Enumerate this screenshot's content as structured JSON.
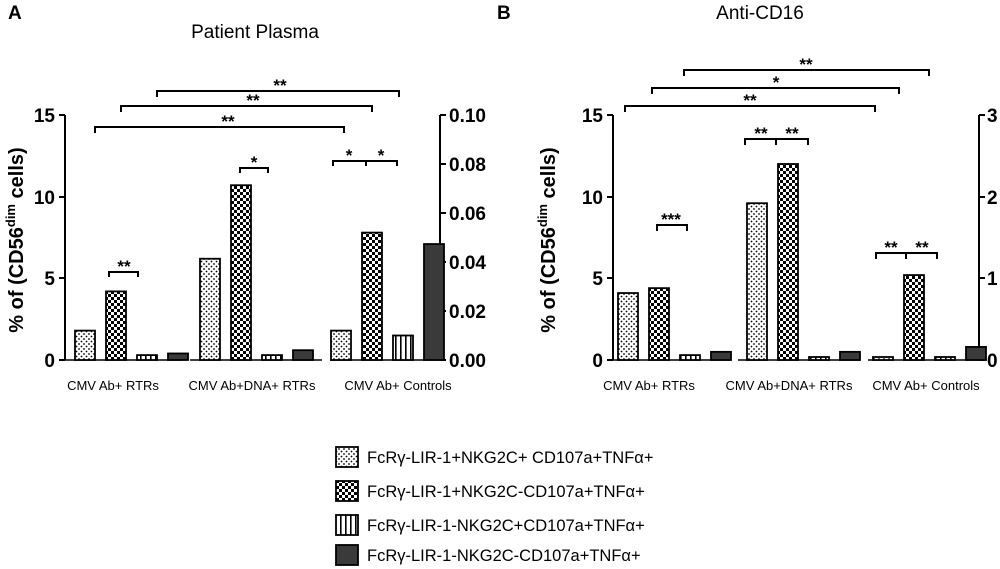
{
  "chart_data": [
    {
      "type": "bar",
      "panel": "A",
      "title": "Patient Plasma",
      "ylabel_main": "% of (CD56",
      "ylabel_sup": "dim",
      "ylabel_end": " cells)",
      "left_axis": {
        "ylim": [
          0,
          15
        ],
        "ticks": [
          "0",
          "5",
          "10",
          "15"
        ]
      },
      "right_axis": {
        "ylim": [
          0,
          0.1
        ],
        "ticks": [
          "0.00",
          "0.02",
          "0.04",
          "0.06",
          "0.08",
          "0.10"
        ]
      },
      "categories": [
        "CMV Ab+ RTRs",
        "CMV Ab+DNA+ RTRs",
        "CMV Ab+ Controls"
      ],
      "series": [
        {
          "name": "FcRγ-LIR-1+NKG2C+ CD107a+TNFα+",
          "values": [
            1.8,
            6.2,
            1.8
          ]
        },
        {
          "name": "FcRγ-LIR-1+NKG2C-CD107a+TNFα+",
          "values": [
            4.2,
            10.7,
            7.8
          ]
        },
        {
          "name": "FcRγ-LIR-1-NKG2C+CD107a+TNFα+",
          "values": [
            0.3,
            0.3,
            1.5
          ]
        },
        {
          "name": "FcRγ-LIR-1-NKG2C-CD107a+TNFα+",
          "values": [
            0.4,
            0.6,
            7.1
          ]
        }
      ],
      "significance": [
        "**",
        "*",
        "*",
        "*",
        "**",
        "**",
        "**"
      ]
    },
    {
      "type": "bar",
      "panel": "B",
      "title": "Anti-CD16",
      "ylabel_main": "% of (CD56",
      "ylabel_sup": "dim",
      "ylabel_end": " cells)",
      "left_axis": {
        "ylim": [
          0,
          15
        ],
        "ticks": [
          "0",
          "5",
          "10",
          "15"
        ]
      },
      "right_axis": {
        "ylim": [
          0,
          3
        ],
        "ticks": [
          "0",
          "1",
          "2",
          "3"
        ]
      },
      "categories": [
        "CMV Ab+ RTRs",
        "CMV Ab+DNA+ RTRs",
        "CMV Ab+ Controls"
      ],
      "series": [
        {
          "name": "FcRγ-LIR-1+NKG2C+ CD107a+TNFα+",
          "values": [
            4.1,
            9.6,
            0.1
          ]
        },
        {
          "name": "FcRγ-LIR-1+NKG2C-CD107a+TNFα+",
          "values": [
            4.4,
            12.0,
            5.2
          ]
        },
        {
          "name": "FcRγ-LIR-1-NKG2C+CD107a+TNFα+",
          "values": [
            0.3,
            0.1,
            0.1
          ]
        },
        {
          "name": "FcRγ-LIR-1-NKG2C-CD107a+TNFα+",
          "values": [
            0.5,
            0.5,
            0.8
          ]
        }
      ],
      "significance": [
        "***",
        "**",
        "**",
        "**",
        "**",
        "**",
        "*",
        "**"
      ]
    }
  ],
  "legend": [
    "FcRγ-LIR-1+NKG2C+ CD107a+TNFα+",
    "FcRγ-LIR-1+NKG2C-CD107a+TNFα+",
    "FcRγ-LIR-1-NKG2C+CD107a+TNFα+",
    "FcRγ-LIR-1-NKG2C-CD107a+TNFα+"
  ],
  "colors": {
    "bar_stroke": "#000000",
    "dark_fill": "#3a3a3a",
    "background": "#ffffff"
  }
}
